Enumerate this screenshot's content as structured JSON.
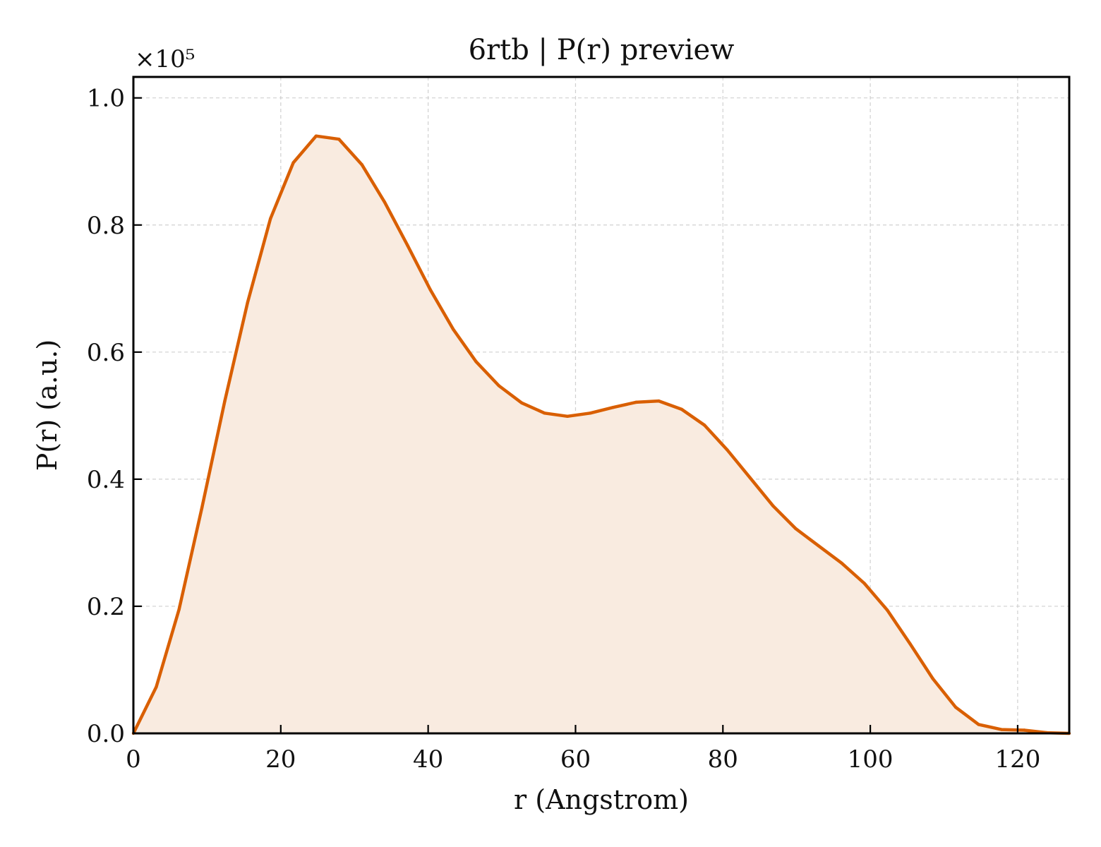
{
  "chart_data": {
    "type": "area",
    "title": "6rtb | P(r) preview",
    "xlabel": "r (Angstrom)",
    "ylabel": "P(r) (a.u.)",
    "y_multiplier": "×10⁵",
    "xlim": [
      0,
      127
    ],
    "ylim": [
      0,
      1.033
    ],
    "xticks": [
      "0",
      "20",
      "40",
      "60",
      "80",
      "100",
      "120"
    ],
    "yticks": [
      "0.0",
      "0.2",
      "0.4",
      "0.6",
      "0.8",
      "1.0"
    ],
    "grid": true,
    "colors": {
      "line": "#d95f02",
      "fill": "#f9ebe0"
    },
    "series": [
      {
        "x": [
          0,
          3.1,
          6.2,
          9.3,
          12.4,
          15.5,
          18.6,
          21.7,
          24.8,
          27.9,
          31.0,
          34.1,
          37.2,
          40.3,
          43.4,
          46.5,
          49.6,
          52.7,
          55.8,
          58.9,
          62.0,
          65.1,
          68.2,
          71.3,
          74.4,
          77.5,
          80.6,
          83.7,
          86.8,
          89.9,
          93.0,
          96.1,
          99.2,
          102.3,
          105.4,
          108.5,
          111.6,
          114.7,
          117.8,
          120.9,
          124.0,
          127.0
        ],
        "y": [
          0.0,
          0.073,
          0.195,
          0.355,
          0.523,
          0.678,
          0.81,
          0.898,
          0.94,
          0.935,
          0.895,
          0.836,
          0.768,
          0.698,
          0.636,
          0.585,
          0.547,
          0.52,
          0.504,
          0.499,
          0.504,
          0.513,
          0.521,
          0.523,
          0.51,
          0.485,
          0.446,
          0.402,
          0.358,
          0.322,
          0.295,
          0.268,
          0.236,
          0.194,
          0.141,
          0.086,
          0.041,
          0.014,
          0.006,
          0.005,
          0.001,
          0.0
        ]
      }
    ]
  }
}
